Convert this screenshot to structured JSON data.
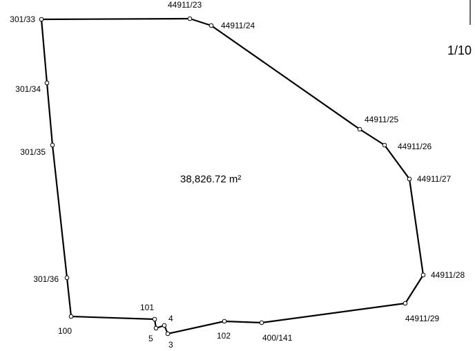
{
  "plot": {
    "area_label": "38,826.72 m²",
    "scale": "1/10",
    "vertices": [
      {
        "label": "301/33"
      },
      {
        "label": "44911/23"
      },
      {
        "label": "44911/24"
      },
      {
        "label": "44911/25"
      },
      {
        "label": "44911/26"
      },
      {
        "label": "44911/27"
      },
      {
        "label": "44911/28"
      },
      {
        "label": "44911/29"
      },
      {
        "label": "400/141"
      },
      {
        "label": "102"
      },
      {
        "label": "3"
      },
      {
        "label": "4"
      },
      {
        "label": "5"
      },
      {
        "label": "101"
      },
      {
        "label": "100"
      },
      {
        "label": "301/36"
      },
      {
        "label": "301/35"
      },
      {
        "label": "301/34"
      }
    ]
  },
  "colors": {
    "line": "#000000",
    "marker_fill": "#ffffff",
    "background": "#ffffff"
  }
}
